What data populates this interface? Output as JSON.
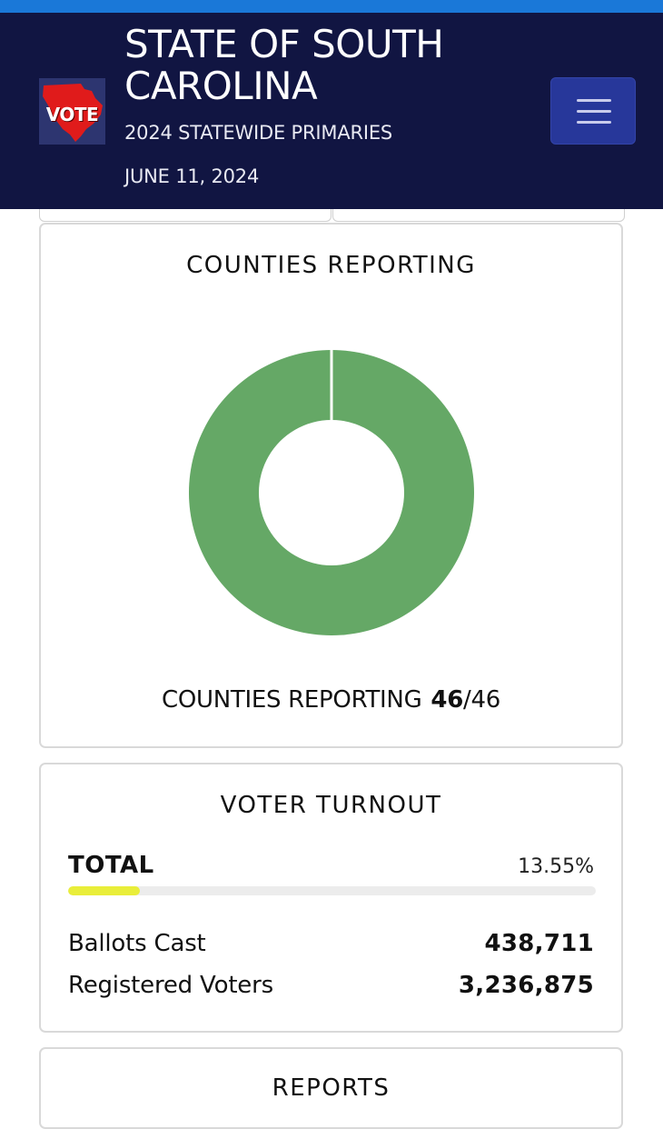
{
  "header": {
    "title": "STATE OF SOUTH CAROLINA",
    "subtitle": "2024 STATEWIDE PRIMARIES",
    "date": "JUNE 11, 2024",
    "logo_text": "VOTE",
    "logo_icon": "south-carolina-vote-logo",
    "menu_icon": "hamburger-menu-icon"
  },
  "counties": {
    "title": "COUNTIES REPORTING",
    "label": "COUNTIES REPORTING",
    "reported": "46",
    "separator": "/",
    "total": "46"
  },
  "turnout": {
    "title": "VOTER TURNOUT",
    "total_label": "TOTAL",
    "total_percent_text": "13.55%",
    "total_fraction": 0.1355,
    "ballots_label": "Ballots Cast",
    "ballots_value": "438,711",
    "registered_label": "Registered Voters",
    "registered_value": "3,236,875"
  },
  "reports": {
    "title": "REPORTS"
  },
  "colors": {
    "header_bg": "#111542",
    "top_accent": "#1a78d8",
    "donut_green": "#65a866",
    "progress_fill": "#e9ee3a",
    "menu_button": "#27379a"
  },
  "chart_data": {
    "type": "pie",
    "categories": [
      "Reporting"
    ],
    "values": [
      46
    ],
    "total": 46
  }
}
